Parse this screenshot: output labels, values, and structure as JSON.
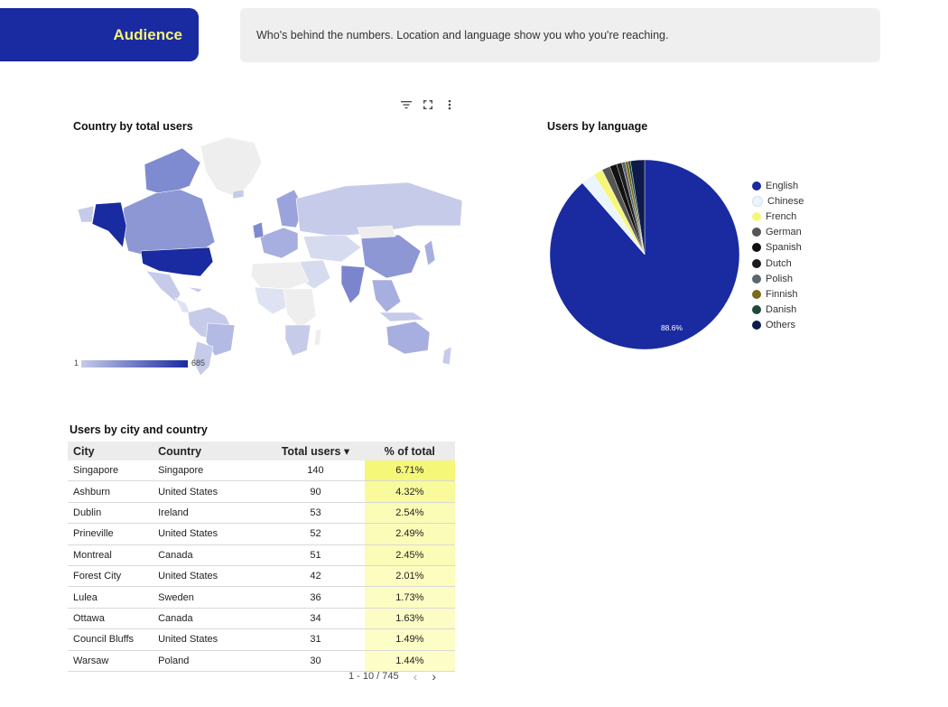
{
  "header": {
    "title": "Audience",
    "description": "Who's behind the numbers. Location and language show you who you're reaching."
  },
  "toolbar": {
    "icons": [
      "filter-icon",
      "fullscreen-icon",
      "more-vert-icon"
    ]
  },
  "map": {
    "title": "Country by total users",
    "legend_min": "1",
    "legend_max": "685",
    "colors": {
      "low": "#c6cbe9",
      "high": "#1a2aa0",
      "none": "#eeeeee"
    }
  },
  "language": {
    "title": "Users by language",
    "center_label": "88.6%",
    "chart_data": {
      "type": "pie",
      "labels": [
        "English",
        "Chinese",
        "French",
        "German",
        "Spanish",
        "Dutch",
        "Polish",
        "Finnish",
        "Danish",
        "Others"
      ],
      "values": [
        88.6,
        2.4,
        1.6,
        1.4,
        1.2,
        0.9,
        0.6,
        0.5,
        0.4,
        2.4
      ],
      "colors": [
        "#1a2aa0",
        "#eaf6fb",
        "#f6f77a",
        "#555555",
        "#111111",
        "#1c1c1c",
        "#5b6670",
        "#7a6a1a",
        "#1f4a3a",
        "#0d1a4a"
      ]
    }
  },
  "city_table": {
    "title": "Users by city and country",
    "headers": [
      "City",
      "Country",
      "Total users ▾",
      "% of total"
    ],
    "rows": [
      [
        "Singapore",
        "Singapore",
        "140",
        "6.71%"
      ],
      [
        "Ashburn",
        "United States",
        "90",
        "4.32%"
      ],
      [
        "Dublin",
        "Ireland",
        "53",
        "2.54%"
      ],
      [
        "Prineville",
        "United States",
        "52",
        "2.49%"
      ],
      [
        "Montreal",
        "Canada",
        "51",
        "2.45%"
      ],
      [
        "Forest City",
        "United States",
        "42",
        "2.01%"
      ],
      [
        "Lulea",
        "Sweden",
        "36",
        "1.73%"
      ],
      [
        "Ottawa",
        "Canada",
        "34",
        "1.63%"
      ],
      [
        "Council Bluffs",
        "United States",
        "31",
        "1.49%"
      ],
      [
        "Warsaw",
        "Poland",
        "30",
        "1.44%"
      ]
    ],
    "pager": "1 - 10 / 745"
  }
}
